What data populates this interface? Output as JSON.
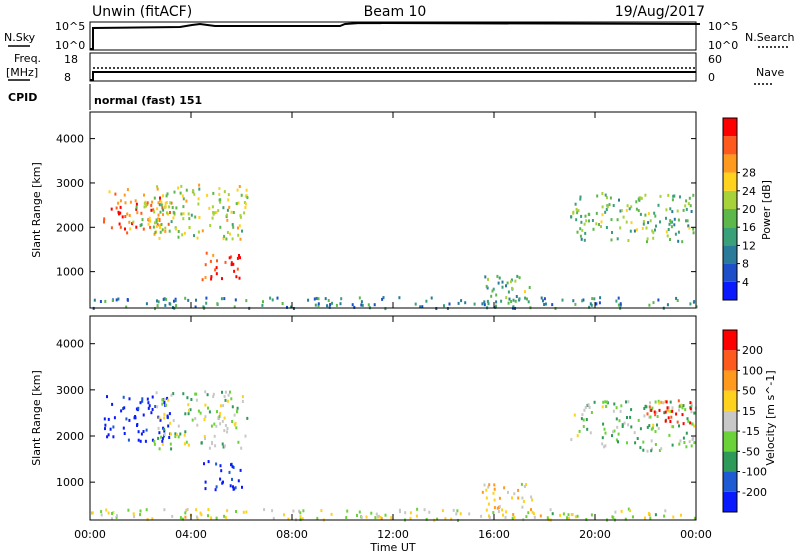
{
  "header": {
    "station": "Unwin (fitACF)",
    "beam": "Beam 10",
    "date": "19/Aug/2017"
  },
  "panels": {
    "nsky_label": "N.Sky",
    "nsearch_label": "N.Search",
    "freq_label_line1": "Freq.",
    "freq_label_line2": "[MHz]",
    "nave_label": "Nave",
    "cpid_label": "CPID",
    "nsky_ticks": [
      "10^5",
      "10^0"
    ],
    "nsearch_ticks": [
      "10^5",
      "10^0"
    ],
    "freq_ticks": [
      "18",
      "8"
    ],
    "nave_ticks": [
      "60",
      "0"
    ],
    "cpid_value": "normal (fast) 151"
  },
  "chart_data": [
    {
      "type": "heatmap",
      "title": "",
      "xlabel": "Time UT",
      "ylabel": "Slant Range [km]",
      "x_ticks": [
        "00:00",
        "04:00",
        "08:00",
        "12:00",
        "16:00",
        "20:00",
        "00:00"
      ],
      "y_ticks": [
        1000,
        2000,
        3000,
        4000
      ],
      "xlim_hours": [
        0,
        24
      ],
      "ylim_km": [
        180,
        4600
      ],
      "colorbar": {
        "label": "Power [dB]",
        "ticks": [
          "4",
          "8",
          "12",
          "16",
          "20",
          "24",
          "28"
        ],
        "colors": [
          "#0a1aff",
          "#1e4fc8",
          "#2a7a9a",
          "#3aa07a",
          "#5cb84a",
          "#a8d23a",
          "#ffd21e",
          "#ff9a1e",
          "#ff5a1e",
          "#ff0000"
        ]
      },
      "patches": [
        {
          "t0": 0.5,
          "t1": 3.2,
          "r0": 1900,
          "r1": 2900,
          "level": 0.8
        },
        {
          "t0": 1.6,
          "t1": 3.4,
          "r0": 2000,
          "r1": 2600,
          "level": 0.5
        },
        {
          "t0": 2.5,
          "t1": 6.2,
          "r0": 1750,
          "r1": 3000,
          "level": 0.55
        },
        {
          "t0": 4.4,
          "t1": 6.0,
          "r0": 850,
          "r1": 1500,
          "level": 0.9
        },
        {
          "t0": 15.5,
          "t1": 17.5,
          "r0": 300,
          "r1": 1000,
          "level": 0.45
        },
        {
          "t0": 19.0,
          "t1": 24.0,
          "r0": 1700,
          "r1": 2800,
          "level": 0.45
        },
        {
          "t0": 0.0,
          "t1": 24.0,
          "r0": 200,
          "r1": 450,
          "level": 0.3
        }
      ]
    },
    {
      "type": "heatmap",
      "title": "",
      "xlabel": "Time UT",
      "ylabel": "Slant Range [km]",
      "x_ticks": [
        "00:00",
        "04:00",
        "08:00",
        "12:00",
        "16:00",
        "20:00",
        "00:00"
      ],
      "y_ticks": [
        1000,
        2000,
        3000,
        4000
      ],
      "xlim_hours": [
        0,
        24
      ],
      "ylim_km": [
        180,
        4600
      ],
      "colorbar": {
        "label": "Velocity [m s^-1]",
        "ticks": [
          "200",
          "100",
          "50",
          "15",
          "-15",
          "-50",
          "-100",
          "-200"
        ],
        "colors": [
          "#0a1aff",
          "#1e5ad2",
          "#2e9a5a",
          "#6cd23a",
          "#c8c8c8",
          "#ffd21e",
          "#ff9a1e",
          "#ff5a1e",
          "#ff0000"
        ]
      },
      "patches": [
        {
          "t0": 0.5,
          "t1": 3.2,
          "r0": 1900,
          "r1": 2900,
          "level": 0.0
        },
        {
          "t0": 2.5,
          "t1": 6.2,
          "r0": 1750,
          "r1": 3000,
          "level": 0.45
        },
        {
          "t0": 4.4,
          "t1": 6.0,
          "r0": 850,
          "r1": 1500,
          "level": 0.05
        },
        {
          "t0": 15.5,
          "t1": 17.5,
          "r0": 300,
          "r1": 1000,
          "level": 0.6
        },
        {
          "t0": 19.0,
          "t1": 24.0,
          "r0": 1700,
          "r1": 2800,
          "level": 0.4
        },
        {
          "t0": 22.0,
          "t1": 24.0,
          "r0": 2300,
          "r1": 2800,
          "level": 0.95
        },
        {
          "t0": 0.0,
          "t1": 24.0,
          "r0": 200,
          "r1": 450,
          "level": 0.5
        }
      ]
    }
  ]
}
